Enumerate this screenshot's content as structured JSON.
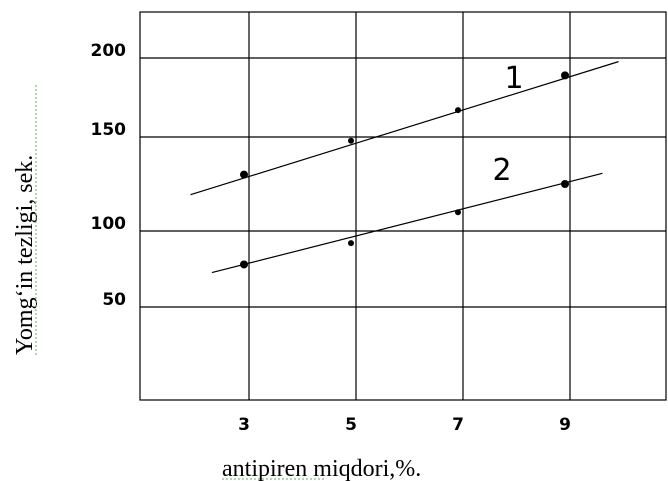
{
  "chart_data": {
    "type": "line",
    "title": "",
    "xlabel": "antipiren miqdori,%.",
    "ylabel": "Yomg‘in tezligi, sek.",
    "x_ticks": [
      "3",
      "5",
      "7",
      "9"
    ],
    "y_ticks": [
      "200",
      "150",
      "100",
      "50"
    ],
    "grid": true,
    "series": [
      {
        "name": "1",
        "x": [
          3,
          5,
          7,
          9
        ],
        "y": [
          130,
          148,
          167,
          189
        ],
        "line_x": [
          2,
          10
        ]
      },
      {
        "name": "2",
        "x": [
          3,
          5,
          7,
          9
        ],
        "y": [
          78,
          92,
          110,
          125
        ],
        "line_x": [
          2.4,
          9.7
        ]
      }
    ]
  }
}
